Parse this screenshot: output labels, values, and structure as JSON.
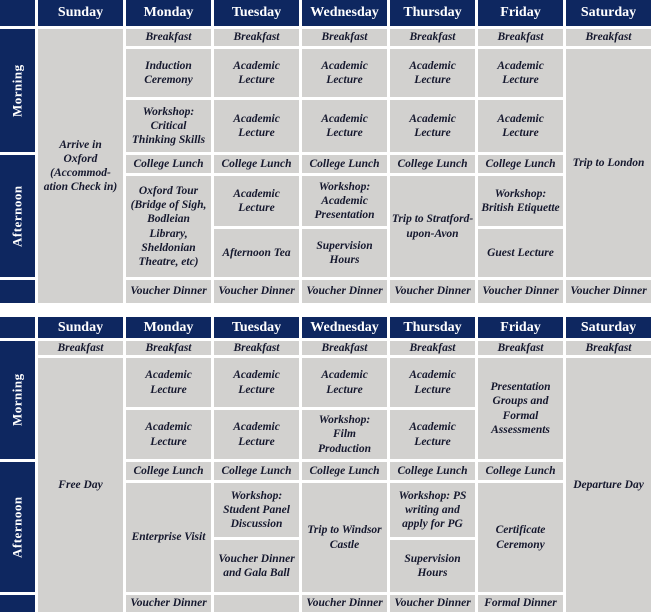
{
  "colors": {
    "navy": "#0e2760",
    "cell_bg": "#d2d1cf",
    "cell_text": "#15182e",
    "header_text": "#ffffff",
    "gap": "#ffffff"
  },
  "tables": [
    {
      "name": "week-1-schedule",
      "day_headers": [
        "Sunday",
        "Monday",
        "Tuesday",
        "Wednesday",
        "Thursday",
        "Friday",
        "Saturday"
      ],
      "side_labels": [
        "Morning",
        "Afternoon"
      ],
      "cells": [
        {
          "col": 0,
          "row": 2,
          "span": 7,
          "text": "Arrive in\nOxford\n(Accommod-\nation Check in)"
        },
        {
          "col": 1,
          "row": 2,
          "span": 1,
          "text": "Breakfast"
        },
        {
          "col": 1,
          "row": 3,
          "span": 1,
          "text": "Induction\nCeremony"
        },
        {
          "col": 1,
          "row": 4,
          "span": 1,
          "text": "Workshop:\nCritical\nThinking Skills"
        },
        {
          "col": 1,
          "row": 5,
          "span": 1,
          "text": "College Lunch"
        },
        {
          "col": 1,
          "row": 6,
          "span": 2,
          "text": "Oxford Tour\n(Bridge of Sigh,\nBodleian\nLibrary,\nSheldonian\nTheatre, etc)"
        },
        {
          "col": 1,
          "row": 8,
          "span": 1,
          "text": "Voucher Dinner"
        },
        {
          "col": 2,
          "row": 2,
          "span": 1,
          "text": "Breakfast"
        },
        {
          "col": 2,
          "row": 3,
          "span": 1,
          "text": "Academic\nLecture"
        },
        {
          "col": 2,
          "row": 4,
          "span": 1,
          "text": "Academic\nLecture"
        },
        {
          "col": 2,
          "row": 5,
          "span": 1,
          "text": "College Lunch"
        },
        {
          "col": 2,
          "row": 6,
          "span": 1,
          "text": "Academic\nLecture"
        },
        {
          "col": 2,
          "row": 7,
          "span": 1,
          "text": "Afternoon Tea"
        },
        {
          "col": 2,
          "row": 8,
          "span": 1,
          "text": "Voucher Dinner"
        },
        {
          "col": 3,
          "row": 2,
          "span": 1,
          "text": "Breakfast"
        },
        {
          "col": 3,
          "row": 3,
          "span": 1,
          "text": "Academic\nLecture"
        },
        {
          "col": 3,
          "row": 4,
          "span": 1,
          "text": "Academic\nLecture"
        },
        {
          "col": 3,
          "row": 5,
          "span": 1,
          "text": "College Lunch"
        },
        {
          "col": 3,
          "row": 6,
          "span": 1,
          "text": "Workshop:\nAcademic\nPresentation"
        },
        {
          "col": 3,
          "row": 7,
          "span": 1,
          "text": "Supervision\nHours"
        },
        {
          "col": 3,
          "row": 8,
          "span": 1,
          "text": "Voucher Dinner"
        },
        {
          "col": 4,
          "row": 2,
          "span": 1,
          "text": "Breakfast"
        },
        {
          "col": 4,
          "row": 3,
          "span": 1,
          "text": "Academic\nLecture"
        },
        {
          "col": 4,
          "row": 4,
          "span": 1,
          "text": "Academic\nLecture"
        },
        {
          "col": 4,
          "row": 5,
          "span": 1,
          "text": "College Lunch"
        },
        {
          "col": 4,
          "row": 6,
          "span": 2,
          "text": "Trip to Stratford-\nupon-Avon"
        },
        {
          "col": 4,
          "row": 8,
          "span": 1,
          "text": "Voucher Dinner"
        },
        {
          "col": 5,
          "row": 2,
          "span": 1,
          "text": "Breakfast"
        },
        {
          "col": 5,
          "row": 3,
          "span": 1,
          "text": "Academic\nLecture"
        },
        {
          "col": 5,
          "row": 4,
          "span": 1,
          "text": "Academic\nLecture"
        },
        {
          "col": 5,
          "row": 5,
          "span": 1,
          "text": "College Lunch"
        },
        {
          "col": 5,
          "row": 6,
          "span": 1,
          "text": "Workshop:\nBritish Etiquette"
        },
        {
          "col": 5,
          "row": 7,
          "span": 1,
          "text": "Guest Lecture"
        },
        {
          "col": 5,
          "row": 8,
          "span": 1,
          "text": "Voucher Dinner"
        },
        {
          "col": 6,
          "row": 2,
          "span": 1,
          "text": "Breakfast"
        },
        {
          "col": 6,
          "row": 3,
          "span": 5,
          "text": "Trip to London"
        },
        {
          "col": 6,
          "row": 8,
          "span": 1,
          "text": "Voucher Dinner"
        }
      ]
    },
    {
      "name": "week-2-schedule",
      "day_headers": [
        "Sunday",
        "Monday",
        "Tuesday",
        "Wednesday",
        "Thursday",
        "Friday",
        "Saturday"
      ],
      "side_labels": [
        "Morning",
        "Afternoon"
      ],
      "cells": [
        {
          "col": 0,
          "row": 2,
          "span": 1,
          "text": "Breakfast"
        },
        {
          "col": 0,
          "row": 3,
          "span": 6,
          "text": "Free Day"
        },
        {
          "col": 1,
          "row": 2,
          "span": 1,
          "text": "Breakfast"
        },
        {
          "col": 1,
          "row": 3,
          "span": 1,
          "text": "Academic\nLecture"
        },
        {
          "col": 1,
          "row": 4,
          "span": 1,
          "text": "Academic\nLecture"
        },
        {
          "col": 1,
          "row": 5,
          "span": 1,
          "text": "College Lunch"
        },
        {
          "col": 1,
          "row": 6,
          "span": 2,
          "text": "Enterprise Visit"
        },
        {
          "col": 1,
          "row": 8,
          "span": 1,
          "text": "Voucher Dinner"
        },
        {
          "col": 2,
          "row": 2,
          "span": 1,
          "text": "Breakfast"
        },
        {
          "col": 2,
          "row": 3,
          "span": 1,
          "text": "Academic\nLecture"
        },
        {
          "col": 2,
          "row": 4,
          "span": 1,
          "text": "Academic\nLecture"
        },
        {
          "col": 2,
          "row": 5,
          "span": 1,
          "text": "College Lunch"
        },
        {
          "col": 2,
          "row": 6,
          "span": 1,
          "text": "Workshop:\nStudent Panel\nDiscussion"
        },
        {
          "col": 2,
          "row": 7,
          "span": 1,
          "text": "Voucher Dinner\nand Gala Ball"
        },
        {
          "col": 2,
          "row": 8,
          "span": 1,
          "text": ""
        },
        {
          "col": 3,
          "row": 2,
          "span": 1,
          "text": "Breakfast"
        },
        {
          "col": 3,
          "row": 3,
          "span": 1,
          "text": "Academic\nLecture"
        },
        {
          "col": 3,
          "row": 4,
          "span": 1,
          "text": "Workshop:\nFilm\nProduction"
        },
        {
          "col": 3,
          "row": 5,
          "span": 1,
          "text": "College Lunch"
        },
        {
          "col": 3,
          "row": 6,
          "span": 2,
          "text": "Trip to Windsor\nCastle"
        },
        {
          "col": 3,
          "row": 8,
          "span": 1,
          "text": "Voucher Dinner"
        },
        {
          "col": 4,
          "row": 2,
          "span": 1,
          "text": "Breakfast"
        },
        {
          "col": 4,
          "row": 3,
          "span": 1,
          "text": "Academic\nLecture"
        },
        {
          "col": 4,
          "row": 4,
          "span": 1,
          "text": "Academic\nLecture"
        },
        {
          "col": 4,
          "row": 5,
          "span": 1,
          "text": "College Lunch"
        },
        {
          "col": 4,
          "row": 6,
          "span": 1,
          "text": "Workshop: PS\nwriting and\napply for PG"
        },
        {
          "col": 4,
          "row": 7,
          "span": 1,
          "text": "Supervision\nHours"
        },
        {
          "col": 4,
          "row": 8,
          "span": 1,
          "text": "Voucher Dinner"
        },
        {
          "col": 5,
          "row": 2,
          "span": 1,
          "text": "Breakfast"
        },
        {
          "col": 5,
          "row": 3,
          "span": 2,
          "text": "Presentation\nGroups and\nFormal\nAssessments"
        },
        {
          "col": 5,
          "row": 5,
          "span": 1,
          "text": "College Lunch"
        },
        {
          "col": 5,
          "row": 6,
          "span": 2,
          "text": "Certificate\nCeremony"
        },
        {
          "col": 5,
          "row": 8,
          "span": 1,
          "text": "Formal Dinner"
        },
        {
          "col": 6,
          "row": 2,
          "span": 1,
          "text": "Breakfast"
        },
        {
          "col": 6,
          "row": 3,
          "span": 6,
          "text": "Departure Day"
        }
      ]
    }
  ]
}
